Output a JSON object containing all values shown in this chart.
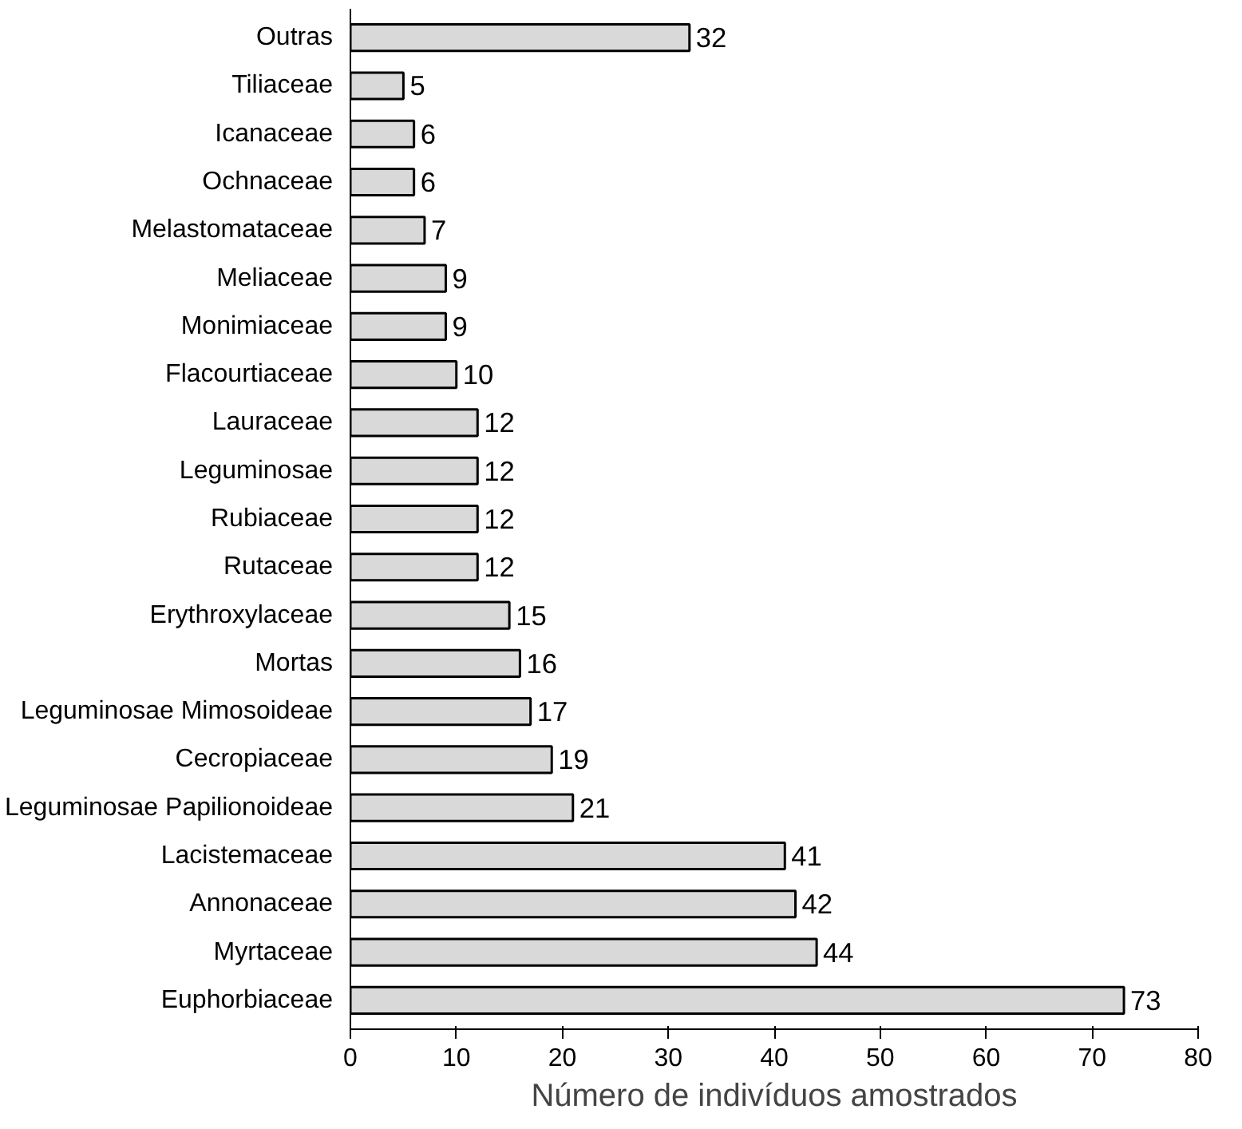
{
  "chart_data": {
    "type": "bar",
    "orientation": "horizontal",
    "xlabel": "Número de indivíduos amostrados",
    "categories": [
      "Outras",
      "Tiliaceae",
      "Icanaceae",
      "Ochnaceae",
      "Melastomataceae",
      "Meliaceae",
      "Monimiaceae",
      "Flacourtiaceae",
      "Lauraceae",
      "Leguminosae",
      "Rubiaceae",
      "Rutaceae",
      "Erythroxylaceae",
      "Mortas",
      "Leguminosae Mimosoideae",
      "Cecropiaceae",
      "Leguminosae Papilionoideae",
      "Lacistemaceae",
      "Annonaceae",
      "Myrtaceae",
      "Euphorbiaceae"
    ],
    "values": [
      32,
      5,
      6,
      6,
      7,
      9,
      9,
      10,
      12,
      12,
      12,
      12,
      15,
      16,
      17,
      19,
      21,
      41,
      42,
      44,
      73
    ],
    "color": "#d9d9d9",
    "xlim": [
      0,
      80
    ],
    "xticks": [
      0,
      10,
      20,
      30,
      40,
      50,
      60,
      70,
      80
    ],
    "grid": false,
    "data_labels": true
  }
}
